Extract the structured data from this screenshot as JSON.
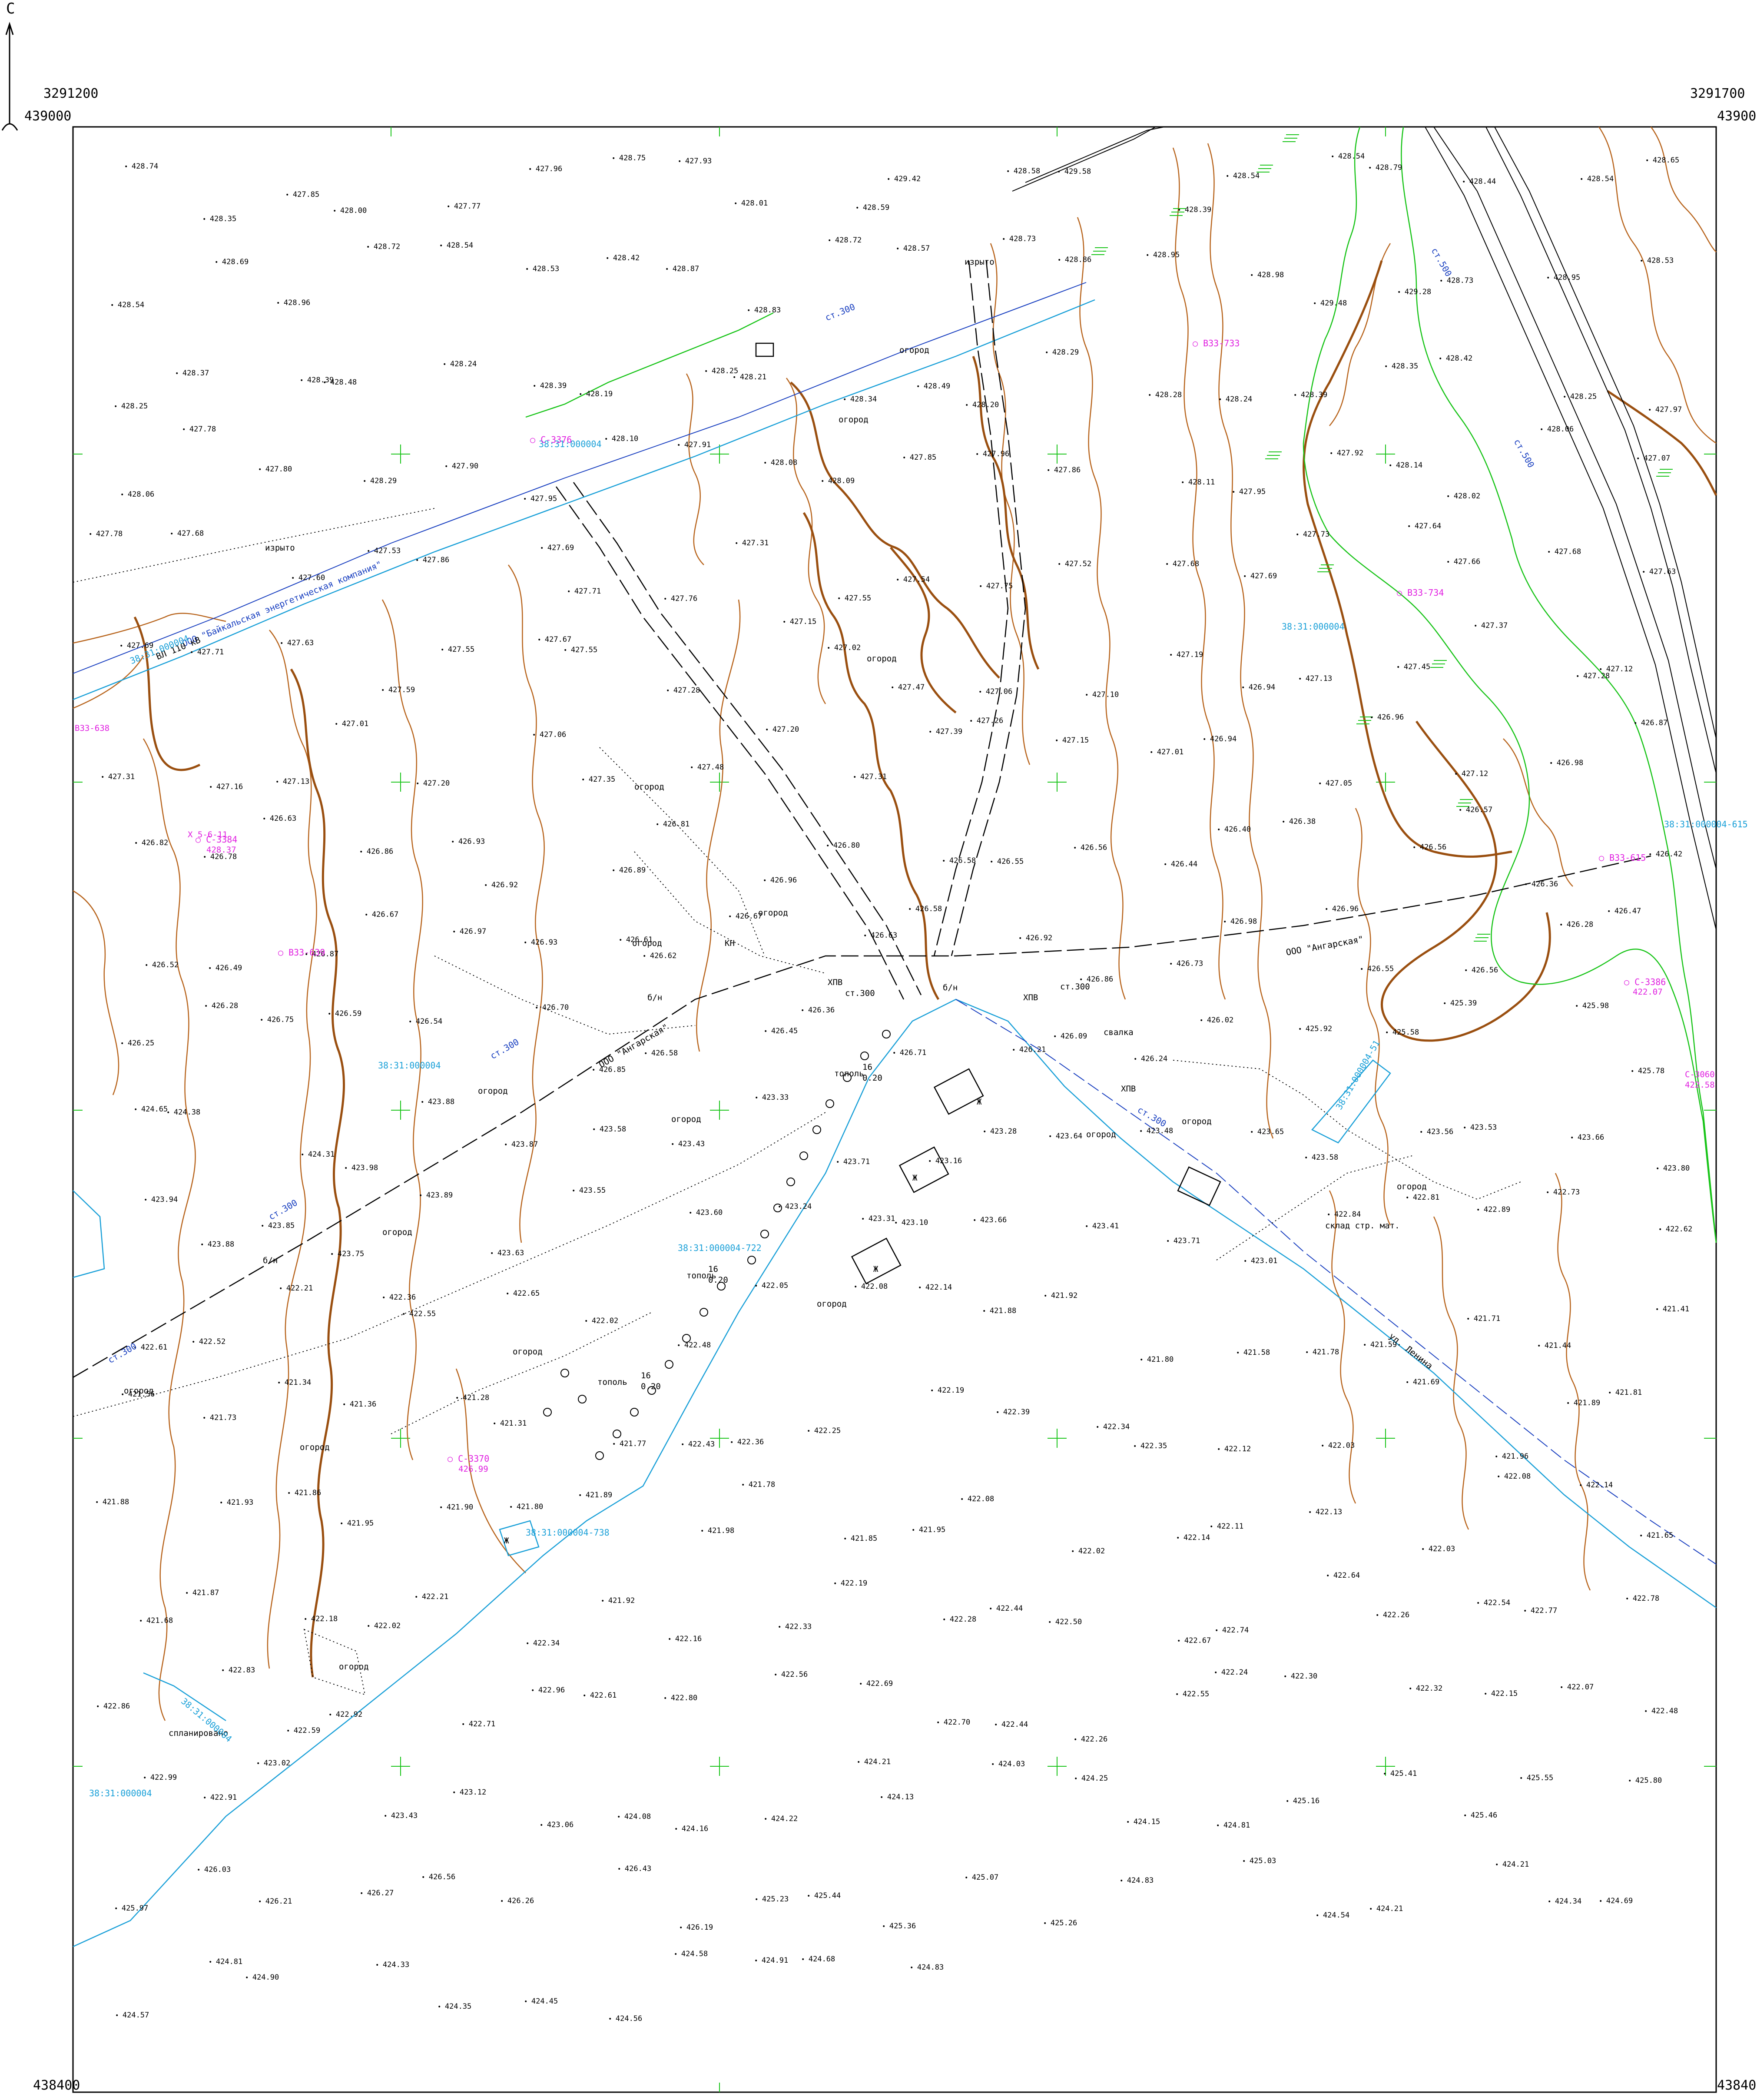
{
  "map": {
    "north_label": "С",
    "corners": {
      "top_left_x": "3291200",
      "top_left_y": "439000",
      "top_right_x": "3291700",
      "top_right_y": "439000",
      "bottom_left_y": "438400",
      "bottom_right_y": "438400"
    },
    "colors": {
      "frame": "#000000",
      "contour": "#b8651e",
      "contour_index": "#9a4f10",
      "cadastral": "#1aa0d8",
      "vegetation": "#19c419",
      "benchmark": "#e020e0",
      "grid_cross": "#19c419",
      "pipeline": "#1a40c0"
    },
    "elevations": [
      "428.74",
      "428.35",
      "427.85",
      "428.00",
      "427.77",
      "427.96",
      "428.75",
      "427.93",
      "428.01",
      "428.59",
      "429.42",
      "428.58",
      "429.58",
      "428.39",
      "428.54",
      "428.54",
      "428.79",
      "428.44",
      "428.54",
      "428.65",
      "428.54",
      "428.69",
      "428.96",
      "428.72",
      "428.54",
      "428.53",
      "428.42",
      "428.87",
      "428.83",
      "428.72",
      "428.57",
      "428.73",
      "428.86",
      "428.95",
      "428.98",
      "429.48",
      "429.28",
      "428.73",
      "428.95",
      "428.53",
      "428.25",
      "428.37",
      "428.39",
      "428.48",
      "428.24",
      "428.39",
      "428.19",
      "428.25",
      "428.21",
      "428.34",
      "428.49",
      "428.20",
      "428.29",
      "428.28",
      "428.24",
      "428.39",
      "428.35",
      "428.42",
      "428.25",
      "427.97",
      "428.06",
      "427.78",
      "427.80",
      "428.29",
      "427.90",
      "427.95",
      "428.10",
      "427.91",
      "428.08",
      "428.09",
      "427.85",
      "427.96",
      "427.86",
      "428.11",
      "427.95",
      "427.92",
      "428.14",
      "428.02",
      "428.06",
      "427.07",
      "427.78",
      "427.68",
      "427.60",
      "427.53",
      "427.86",
      "427.69",
      "427.71",
      "427.76",
      "427.31",
      "427.55",
      "427.54",
      "427.75",
      "427.52",
      "427.68",
      "427.69",
      "427.73",
      "427.64",
      "427.66",
      "427.68",
      "427.63",
      "427.69",
      "427.71",
      "427.63",
      "427.59",
      "427.55",
      "427.67",
      "427.55",
      "427.28",
      "427.15",
      "427.02",
      "427.47",
      "427.06",
      "427.10",
      "427.19",
      "426.94",
      "427.13",
      "427.45",
      "427.37",
      "427.28",
      "427.12",
      "427.31",
      "427.16",
      "427.13",
      "427.01",
      "427.20",
      "427.06",
      "427.35",
      "427.48",
      "427.20",
      "427.31",
      "427.39",
      "427.26",
      "427.15",
      "427.01",
      "426.94",
      "427.05",
      "426.96",
      "427.12",
      "426.98",
      "426.87",
      "426.82",
      "426.78",
      "426.63",
      "426.86",
      "426.93",
      "426.92",
      "426.89",
      "426.81",
      "426.96",
      "426.80",
      "426.58",
      "426.55",
      "426.56",
      "426.44",
      "426.40",
      "426.38",
      "426.56",
      "426.57",
      "426.36",
      "426.42",
      "426.52",
      "426.49",
      "426.87",
      "426.67",
      "426.97",
      "426.93",
      "426.61",
      "426.62",
      "426.67",
      "426.63",
      "426.58",
      "426.92",
      "426.86",
      "426.73",
      "426.98",
      "426.96",
      "426.55",
      "426.56",
      "426.28",
      "426.47",
      "426.25",
      "426.28",
      "426.75",
      "426.59",
      "426.54",
      "426.70",
      "426.85",
      "426.58",
      "426.45",
      "426.36",
      "426.71",
      "426.21",
      "426.09",
      "426.24",
      "426.02",
      "425.92",
      "425.58",
      "425.39",
      "425.98",
      "425.78",
      "424.65",
      "424.38",
      "424.31",
      "423.98",
      "423.88",
      "423.87",
      "423.58",
      "423.43",
      "423.33",
      "423.71",
      "423.16",
      "423.28",
      "423.64",
      "423.48",
      "423.65",
      "423.58",
      "423.56",
      "423.53",
      "423.66",
      "423.80",
      "423.94",
      "423.88",
      "423.85",
      "423.75",
      "423.89",
      "423.63",
      "423.55",
      "423.60",
      "423.24",
      "423.31",
      "423.10",
      "423.66",
      "423.41",
      "423.71",
      "423.01",
      "422.84",
      "422.81",
      "422.89",
      "422.73",
      "422.62",
      "422.61",
      "422.52",
      "422.21",
      "422.36",
      "422.55",
      "422.65",
      "422.02",
      "422.48",
      "422.05",
      "422.08",
      "422.14",
      "421.88",
      "421.92",
      "421.80",
      "421.58",
      "421.78",
      "421.59",
      "421.71",
      "421.44",
      "421.41",
      "421.56",
      "421.73",
      "421.34",
      "421.36",
      "421.28",
      "421.31",
      "421.77",
      "422.43",
      "422.36",
      "422.25",
      "422.19",
      "422.39",
      "422.34",
      "422.35",
      "422.12",
      "422.03",
      "421.69",
      "421.96",
      "421.89",
      "421.81",
      "421.88",
      "421.93",
      "421.86",
      "421.95",
      "421.90",
      "421.80",
      "421.89",
      "421.98",
      "421.78",
      "421.85",
      "421.95",
      "422.08",
      "422.02",
      "422.14",
      "422.11",
      "422.13",
      "422.03",
      "422.08",
      "422.14",
      "421.65",
      "421.68",
      "421.87",
      "422.18",
      "422.02",
      "422.21",
      "422.34",
      "421.92",
      "422.16",
      "422.33",
      "422.19",
      "422.28",
      "422.44",
      "422.50",
      "422.67",
      "422.74",
      "422.64",
      "422.26",
      "422.54",
      "422.77",
      "422.78",
      "422.86",
      "422.83",
      "422.59",
      "422.92",
      "422.71",
      "422.96",
      "422.61",
      "422.80",
      "422.56",
      "422.69",
      "422.70",
      "422.44",
      "422.26",
      "422.55",
      "422.24",
      "422.30",
      "422.32",
      "422.15",
      "422.07",
      "422.48",
      "422.99",
      "422.91",
      "423.02",
      "423.43",
      "423.12",
      "423.06",
      "424.08",
      "424.16",
      "424.22",
      "424.21",
      "424.13",
      "424.03",
      "424.25",
      "424.15",
      "424.81",
      "425.16",
      "425.41",
      "425.46",
      "425.55",
      "425.80",
      "425.97",
      "426.03",
      "426.21",
      "426.27",
      "426.56",
      "426.26",
      "426.43",
      "426.19",
      "425.23",
      "425.44",
      "425.36",
      "425.07",
      "425.26",
      "424.83",
      "425.03",
      "424.54",
      "424.21",
      "424.21",
      "424.34",
      "424.69",
      "424.57",
      "424.81",
      "424.90",
      "424.33",
      "424.35",
      "424.45",
      "424.56",
      "424.58",
      "424.91",
      "424.68",
      "424.83"
    ],
    "labels": {
      "ogorod": "огород",
      "izryto": "изрыто",
      "svalka": "свалка",
      "splanirovano": "спланировано",
      "sklad": "склад стр. мат.",
      "topol_1": "тополь",
      "topol_2": "тополь",
      "topol_3": "тополь",
      "kat": "ст.300",
      "khpv": "ХПВ",
      "road_company": "ООО \"Байкальская энергетическая компания\"",
      "road_ooo": "ООО \"Ангарская\"",
      "road_vl": "ВЛ 110 кВ",
      "street": "ул. Ленина",
      "pipe_label": "ст.300",
      "pipe_label_2": "ст.500",
      "zh_1": "Ж",
      "zh_2": "Ж",
      "zh_3": "Ж",
      "zh_4": "Ж",
      "kn": "КН",
      "bn": "б/н",
      "bn_2": "б/н",
      "bn_3": "б/н",
      "tree_size": "0.20",
      "tree_num": "16"
    },
    "cadastral": [
      "38:31:000004",
      "38:31:000004",
      "38:31:000004",
      "38:31:000004-722",
      "38:31:000004-738",
      "38:31:000004",
      "38:31:000004-615",
      "38:31:000004-615",
      "38:31:000004",
      "38:31:000004-51",
      "38:31:000004"
    ],
    "benchmarks": [
      "С-3376",
      "С-3384",
      "428.37",
      "В33-639",
      "С-3370",
      "426.99",
      "В33-733",
      "В33-734",
      "В33-638",
      "В33-615",
      "С-3386",
      "422.07",
      "С-3060",
      "422.58",
      "Х 5-6-11"
    ]
  }
}
